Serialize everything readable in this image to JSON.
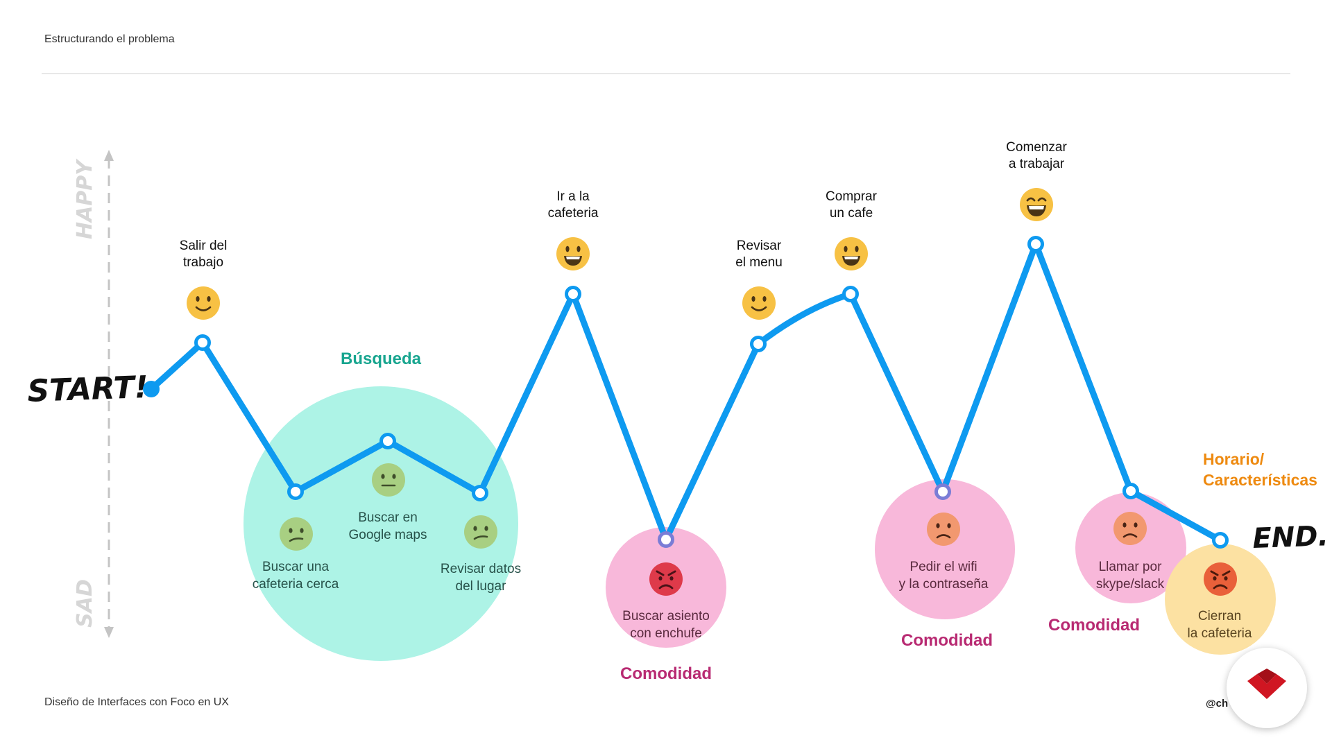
{
  "header": {
    "title": "Estructurando el problema"
  },
  "footer": {
    "left": "Diseño de Interfaces con Foco en UX",
    "right": "@ch"
  },
  "axis": {
    "top_label": "HAPPY",
    "bottom_label": "SAD"
  },
  "markers": {
    "start": "START!",
    "end": "END."
  },
  "colors": {
    "line": "#0E9AF0",
    "busqueda_fill": "#ADF3E6",
    "busqueda_label": "#17A58F",
    "comodidad_fill": "#F8B8DA",
    "comodidad_label": "#B82A72",
    "horario_fill": "#FCE1A2",
    "horario_label": "#EE8A10"
  },
  "zones": {
    "busqueda": "Búsqueda",
    "comodidad_1": "Comodidad",
    "comodidad_2": "Comodidad",
    "comodidad_3": "Comodidad",
    "horario_1": "Horario/",
    "horario_2": "Características"
  },
  "steps": [
    {
      "id": "salir",
      "l1": "Salir del",
      "l2": "trabajo",
      "mood": "happy"
    },
    {
      "id": "buscar-cafeteria",
      "l1": "Buscar una",
      "l2": "cafeteria cerca",
      "mood": "confused"
    },
    {
      "id": "google-maps",
      "l1": "Buscar en",
      "l2": "Google maps",
      "mood": "neutral"
    },
    {
      "id": "revisar-datos",
      "l1": "Revisar datos",
      "l2": "del lugar",
      "mood": "confused"
    },
    {
      "id": "ir-cafeteria",
      "l1": "Ir a la",
      "l2": "cafeteria",
      "mood": "very-happy"
    },
    {
      "id": "asiento",
      "l1": "Buscar asiento",
      "l2": "con enchufe",
      "mood": "angry"
    },
    {
      "id": "menu",
      "l1": "Revisar",
      "l2": "el menu",
      "mood": "happy"
    },
    {
      "id": "cafe",
      "l1": "Comprar",
      "l2": "un cafe",
      "mood": "very-happy"
    },
    {
      "id": "wifi",
      "l1": "Pedir el wifi",
      "l2": "y la contraseña",
      "mood": "sad"
    },
    {
      "id": "trabajar",
      "l1": "Comenzar",
      "l2": "a trabajar",
      "mood": "grin"
    },
    {
      "id": "llamar",
      "l1": "Llamar por",
      "l2": "skype/slack",
      "mood": "sad"
    },
    {
      "id": "cierran",
      "l1": "Cierran",
      "l2": "la cafeteria",
      "mood": "angry"
    }
  ]
}
